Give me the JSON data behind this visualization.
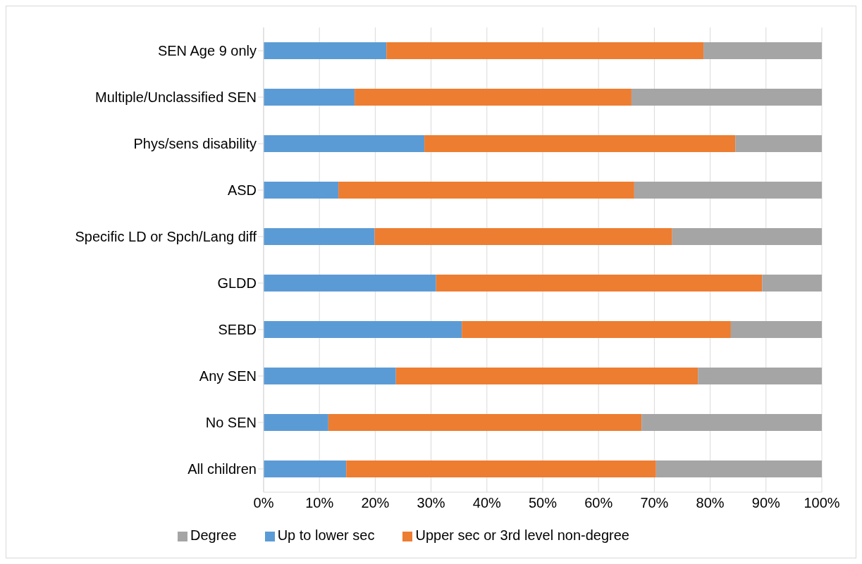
{
  "chart_data": {
    "type": "bar",
    "orientation": "horizontal",
    "stacked": true,
    "categories": [
      "SEN Age 9 only",
      "Multiple/Unclassified SEN",
      "Phys/sens disability",
      "ASD",
      "Specific LD or Spch/Lang diff",
      "GLDD",
      "SEBD",
      "Any SEN",
      "No SEN",
      "All children"
    ],
    "series": [
      {
        "name": "Up to lower sec",
        "color": "#5b9bd5",
        "values": [
          22.0,
          16.3,
          28.8,
          13.4,
          19.9,
          30.9,
          35.5,
          23.7,
          11.6,
          14.8
        ]
      },
      {
        "name": "Upper sec or 3rd level non-degree",
        "color": "#ed7d31",
        "values": [
          56.8,
          49.6,
          55.7,
          53.0,
          53.3,
          58.4,
          48.2,
          54.1,
          56.1,
          55.5
        ]
      },
      {
        "name": "Degree",
        "color": "#a5a5a5",
        "values": [
          21.2,
          34.1,
          15.5,
          33.6,
          26.8,
          10.7,
          16.3,
          22.2,
          32.3,
          29.7
        ]
      }
    ],
    "xlim": [
      0,
      100
    ],
    "xticks": [
      {
        "value": 0,
        "label": "0%"
      },
      {
        "value": 10,
        "label": "10%"
      },
      {
        "value": 20,
        "label": "20%"
      },
      {
        "value": 30,
        "label": "30%"
      },
      {
        "value": 40,
        "label": "40%"
      },
      {
        "value": 50,
        "label": "50%"
      },
      {
        "value": 60,
        "label": "60%"
      },
      {
        "value": 70,
        "label": "70%"
      },
      {
        "value": 80,
        "label": "80%"
      },
      {
        "value": 90,
        "label": "90%"
      },
      {
        "value": 100,
        "label": "100%"
      }
    ],
    "grid": "x",
    "legend": "bottom"
  }
}
